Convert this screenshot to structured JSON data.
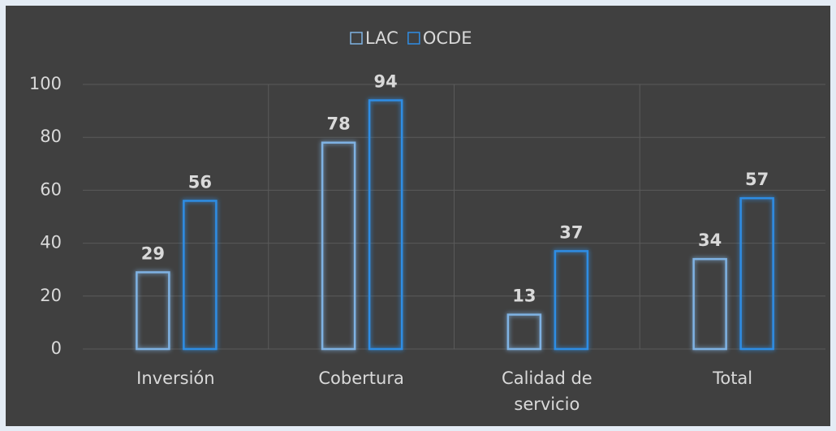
{
  "chart_data": {
    "type": "bar",
    "categories": [
      "Inversión",
      "Cobertura",
      "Calidad de servicio",
      "Total"
    ],
    "series": [
      {
        "name": "LAC",
        "color": "#7fb2e3",
        "values": [
          29,
          78,
          13,
          34
        ]
      },
      {
        "name": "OCDE",
        "color": "#2f8de4",
        "values": [
          56,
          94,
          37,
          57
        ]
      }
    ],
    "ylim": [
      0,
      100
    ],
    "yticks": [
      0,
      20,
      40,
      60,
      80,
      100
    ],
    "grid": true,
    "legend": "top"
  }
}
